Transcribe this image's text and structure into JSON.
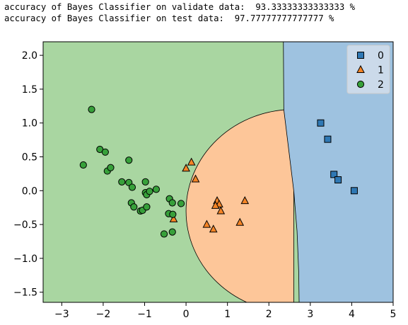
{
  "output": {
    "line1": "accuracy of Bayes Classifier on validate data:  93.33333333333333 %",
    "line2": "accuracy of Bayes Classifier on test data:  97.77777777777777 %"
  },
  "colors": {
    "region0": "#9ec2e0",
    "region1": "#fdc699",
    "region2": "#a9d6a1",
    "marker0": "#2f78b4",
    "marker1": "#f58425",
    "marker2": "#37a03a"
  },
  "chart_data": {
    "type": "scatter",
    "xlim": [
      -3.45,
      5.0
    ],
    "ylim": [
      -1.65,
      2.2
    ],
    "xticks": [
      "−3",
      "−2",
      "−1",
      "0",
      "1",
      "2",
      "3",
      "4",
      "5"
    ],
    "xtick_values": [
      -3,
      -2,
      -1,
      0,
      1,
      2,
      3,
      4,
      5
    ],
    "yticks": [
      "2.0",
      "1.5",
      "1.0",
      "0.5",
      "0.0",
      "−0.5",
      "−1.0",
      "−1.5"
    ],
    "ytick_values": [
      2.0,
      1.5,
      1.0,
      0.5,
      0.0,
      -0.5,
      -1.0,
      -1.5
    ],
    "legend_position": "top-right",
    "regions": [
      {
        "class": "0",
        "description": "right region, x greater than about 2.4 at top widening to 2.75 at bottom"
      },
      {
        "class": "1",
        "description": "half-disc region centered near x=2.6, y=-0.3"
      },
      {
        "class": "2",
        "description": "remaining left region"
      }
    ],
    "series": [
      {
        "name": "0",
        "marker": "square",
        "points": [
          [
            3.25,
            1.0
          ],
          [
            3.42,
            0.76
          ],
          [
            3.57,
            0.24
          ],
          [
            3.67,
            0.16
          ],
          [
            4.06,
            0.0
          ]
        ]
      },
      {
        "name": "1",
        "marker": "triangle",
        "points": [
          [
            0.13,
            0.42
          ],
          [
            0.0,
            0.33
          ],
          [
            0.23,
            0.17
          ],
          [
            0.75,
            -0.15
          ],
          [
            0.8,
            -0.2
          ],
          [
            0.71,
            -0.22
          ],
          [
            0.84,
            -0.3
          ],
          [
            1.42,
            -0.15
          ],
          [
            0.5,
            -0.5
          ],
          [
            0.66,
            -0.57
          ],
          [
            1.3,
            -0.47
          ],
          [
            -0.3,
            -0.42
          ]
        ]
      },
      {
        "name": "2",
        "marker": "circle",
        "points": [
          [
            -2.28,
            1.2
          ],
          [
            -2.08,
            0.61
          ],
          [
            -1.95,
            0.57
          ],
          [
            -2.48,
            0.38
          ],
          [
            -1.9,
            0.29
          ],
          [
            -1.82,
            0.34
          ],
          [
            -1.38,
            0.45
          ],
          [
            -1.55,
            0.13
          ],
          [
            -1.38,
            0.12
          ],
          [
            -1.3,
            0.05
          ],
          [
            -0.98,
            0.13
          ],
          [
            -0.98,
            -0.03
          ],
          [
            -0.95,
            -0.06
          ],
          [
            -0.88,
            -0.01
          ],
          [
            -0.72,
            0.02
          ],
          [
            -0.4,
            -0.12
          ],
          [
            -0.33,
            -0.18
          ],
          [
            -0.12,
            -0.19
          ],
          [
            -1.32,
            -0.18
          ],
          [
            -1.26,
            -0.24
          ],
          [
            -1.1,
            -0.3
          ],
          [
            -1.05,
            -0.29
          ],
          [
            -0.95,
            -0.24
          ],
          [
            -0.42,
            -0.34
          ],
          [
            -0.32,
            -0.35
          ],
          [
            -0.53,
            -0.64
          ],
          [
            -0.33,
            -0.61
          ]
        ]
      }
    ]
  }
}
